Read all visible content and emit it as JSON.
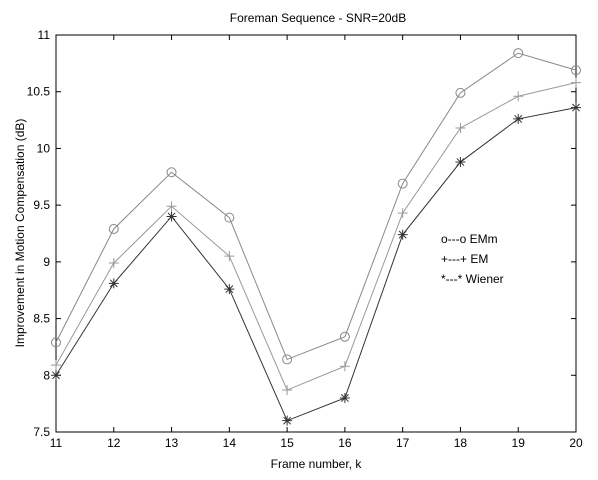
{
  "chart_data": {
    "type": "line",
    "title": "Foreman Sequence -  SNR=20dB",
    "xlabel": "Frame number, k",
    "ylabel": "Improvement in Motion Compensation (dB)",
    "xlim": [
      11,
      20
    ],
    "ylim": [
      7.5,
      11
    ],
    "xticks": [
      11,
      12,
      13,
      14,
      15,
      16,
      17,
      18,
      19,
      20
    ],
    "yticks": [
      7.5,
      8,
      8.5,
      9,
      9.5,
      10,
      10.5,
      11
    ],
    "x": [
      11,
      12,
      13,
      14,
      15,
      16,
      17,
      18,
      19,
      20
    ],
    "grid": false,
    "legend_position": "right",
    "series": [
      {
        "name": "o---o EMm",
        "marker": "circle",
        "color": "#888888",
        "values": [
          8.29,
          9.29,
          9.79,
          9.39,
          8.14,
          8.34,
          9.69,
          10.49,
          10.84,
          10.69
        ]
      },
      {
        "name": "+---+ EM",
        "marker": "plus",
        "color": "#999999",
        "values": [
          8.09,
          8.99,
          9.49,
          9.05,
          7.87,
          8.08,
          9.43,
          10.18,
          10.46,
          10.58
        ]
      },
      {
        "name": "*---* Wiener",
        "marker": "star",
        "color": "#333333",
        "values": [
          8.0,
          8.81,
          9.4,
          8.76,
          7.6,
          7.8,
          9.24,
          9.88,
          10.26,
          10.36
        ]
      }
    ]
  }
}
